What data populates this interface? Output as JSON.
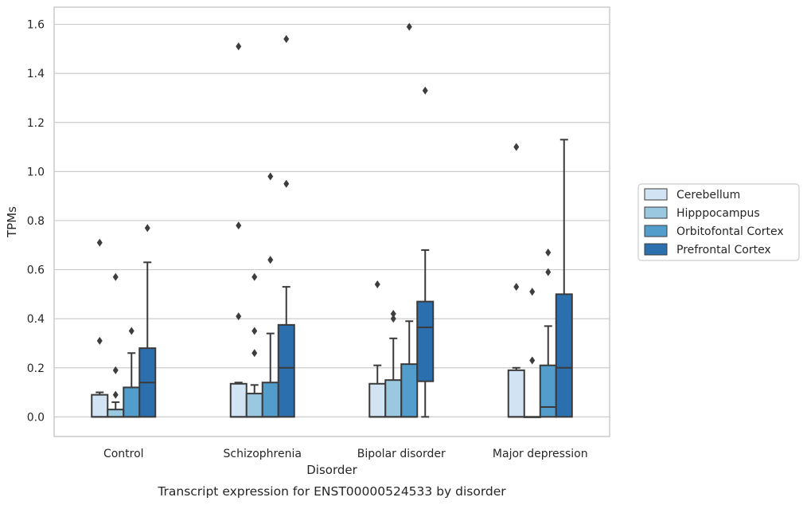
{
  "caption": "Transcript expression for ENST00000524533 by disorder",
  "colors": {
    "Cerebellum": "#d2e3f3",
    "Hipppocampus": "#9ac8e0",
    "Orbitofontal Cortex": "#529dcc",
    "Prefrontal Cortex": "#2c6fae",
    "line": "#3a3a3a",
    "grid": "#cccccc",
    "frame": "#cccccc"
  },
  "chart_data": {
    "type": "boxplot",
    "title": "",
    "xlabel": "Disorder",
    "ylabel": "TPMs",
    "ylim": [
      -0.08,
      1.67
    ],
    "yticks": [
      0.0,
      0.2,
      0.4,
      0.6,
      0.8,
      1.0,
      1.2,
      1.4,
      1.6
    ],
    "ytick_labels": [
      "0.0",
      "0.2",
      "0.4",
      "0.6",
      "0.8",
      "1.0",
      "1.2",
      "1.4",
      "1.6"
    ],
    "grid": "horizontal",
    "legend_position": "right",
    "categories": [
      "Control",
      "Schizophrenia",
      "Bipolar disorder",
      "Major depression"
    ],
    "series": [
      {
        "name": "Cerebellum",
        "boxes": [
          {
            "whislo": 0.0,
            "q1": 0.0,
            "med": 0.0,
            "q3": 0.09,
            "whishi": 0.1,
            "fliers": [
              0.71,
              0.31
            ]
          },
          {
            "whislo": 0.0,
            "q1": 0.0,
            "med": 0.0,
            "q3": 0.135,
            "whishi": 0.14,
            "fliers": [
              1.51,
              0.78,
              0.41
            ]
          },
          {
            "whislo": 0.0,
            "q1": 0.0,
            "med": 0.0,
            "q3": 0.135,
            "whishi": 0.21,
            "fliers": [
              0.54
            ]
          },
          {
            "whislo": 0.0,
            "q1": 0.0,
            "med": 0.0,
            "q3": 0.19,
            "whishi": 0.2,
            "fliers": [
              1.1,
              0.53
            ]
          }
        ]
      },
      {
        "name": "Hipppocampus",
        "boxes": [
          {
            "whislo": 0.0,
            "q1": 0.0,
            "med": 0.0,
            "q3": 0.03,
            "whishi": 0.06,
            "fliers": [
              0.57,
              0.19,
              0.09
            ]
          },
          {
            "whislo": 0.0,
            "q1": 0.0,
            "med": 0.0,
            "q3": 0.095,
            "whishi": 0.13,
            "fliers": [
              0.57,
              0.35,
              0.26
            ]
          },
          {
            "whislo": 0.0,
            "q1": 0.0,
            "med": 0.0,
            "q3": 0.15,
            "whishi": 0.32,
            "fliers": [
              0.42,
              0.4
            ]
          },
          {
            "whislo": 0.0,
            "q1": 0.0,
            "med": 0.0,
            "q3": 0.0,
            "whishi": 0.0,
            "fliers": [
              0.51,
              0.23
            ]
          }
        ]
      },
      {
        "name": "Orbitofontal Cortex",
        "boxes": [
          {
            "whislo": 0.0,
            "q1": 0.0,
            "med": 0.0,
            "q3": 0.12,
            "whishi": 0.26,
            "fliers": [
              0.35
            ]
          },
          {
            "whislo": 0.0,
            "q1": 0.0,
            "med": 0.0,
            "q3": 0.14,
            "whishi": 0.34,
            "fliers": [
              0.98,
              0.64
            ]
          },
          {
            "whislo": 0.0,
            "q1": 0.0,
            "med": 0.0,
            "q3": 0.215,
            "whishi": 0.39,
            "fliers": [
              1.59
            ]
          },
          {
            "whislo": 0.0,
            "q1": 0.0,
            "med": 0.04,
            "q3": 0.21,
            "whishi": 0.37,
            "fliers": [
              0.67,
              0.59
            ]
          }
        ]
      },
      {
        "name": "Prefrontal Cortex",
        "boxes": [
          {
            "whislo": 0.0,
            "q1": 0.0,
            "med": 0.14,
            "q3": 0.28,
            "whishi": 0.63,
            "fliers": [
              0.77
            ]
          },
          {
            "whislo": 0.0,
            "q1": 0.0,
            "med": 0.2,
            "q3": 0.375,
            "whishi": 0.53,
            "fliers": [
              1.54,
              0.95
            ]
          },
          {
            "whislo": 0.0,
            "q1": 0.145,
            "med": 0.365,
            "q3": 0.47,
            "whishi": 0.68,
            "fliers": [
              1.33
            ]
          },
          {
            "whislo": 0.0,
            "q1": 0.0,
            "med": 0.2,
            "q3": 0.5,
            "whishi": 1.13,
            "fliers": []
          }
        ]
      }
    ]
  }
}
